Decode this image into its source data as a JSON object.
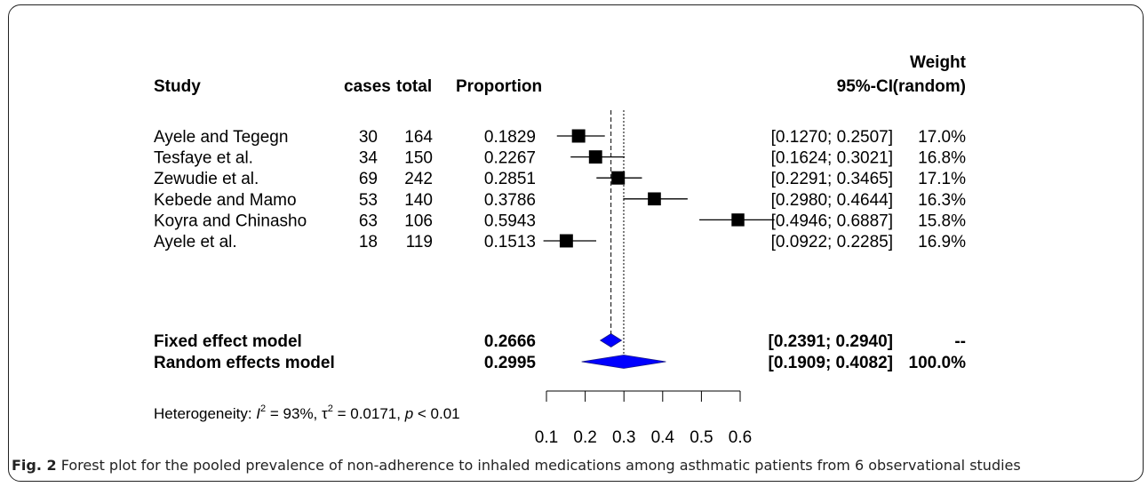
{
  "chart_data": {
    "type": "forest",
    "headers": {
      "study": "Study",
      "cases": "cases",
      "total": "total",
      "proportion": "Proportion",
      "ci": "95%-CI",
      "weight_line1": "Weight",
      "weight_line2": "(random)"
    },
    "studies": [
      {
        "name": "Ayele and Tegegn",
        "cases": "30",
        "total": "164",
        "proportion": "0.1829",
        "ci_text": "[0.1270; 0.2507]",
        "weight": "17.0%",
        "est": 0.1829,
        "lo": 0.127,
        "hi": 0.2507,
        "w": 17.0
      },
      {
        "name": "Tesfaye et al.",
        "cases": "34",
        "total": "150",
        "proportion": "0.2267",
        "ci_text": "[0.1624; 0.3021]",
        "weight": "16.8%",
        "est": 0.2267,
        "lo": 0.1624,
        "hi": 0.3021,
        "w": 16.8
      },
      {
        "name": "Zewudie et al.",
        "cases": "69",
        "total": "242",
        "proportion": "0.2851",
        "ci_text": "[0.2291; 0.3465]",
        "weight": "17.1%",
        "est": 0.2851,
        "lo": 0.2291,
        "hi": 0.3465,
        "w": 17.1
      },
      {
        "name": "Kebede and Mamo",
        "cases": "53",
        "total": "140",
        "proportion": "0.3786",
        "ci_text": "[0.2980; 0.4644]",
        "weight": "16.3%",
        "est": 0.3786,
        "lo": 0.298,
        "hi": 0.4644,
        "w": 16.3
      },
      {
        "name": "Koyra and Chinasho",
        "cases": "63",
        "total": "106",
        "proportion": "0.5943",
        "ci_text": "[0.4946; 0.6887]",
        "weight": "15.8%",
        "est": 0.5943,
        "lo": 0.4946,
        "hi": 0.6887,
        "w": 15.8
      },
      {
        "name": "Ayele et al.",
        "cases": "18",
        "total": "119",
        "proportion": "0.1513",
        "ci_text": "[0.0922; 0.2285]",
        "weight": "16.9%",
        "est": 0.1513,
        "lo": 0.0922,
        "hi": 0.2285,
        "w": 16.9
      }
    ],
    "summary": [
      {
        "name": "Fixed effect model",
        "proportion": "0.2666",
        "ci_text": "[0.2391; 0.2940]",
        "weight": "--",
        "est": 0.2666,
        "lo": 0.2391,
        "hi": 0.294
      },
      {
        "name": "Random effects model",
        "proportion": "0.2995",
        "ci_text": "[0.1909; 0.4082]",
        "weight": "100.0%",
        "est": 0.2995,
        "lo": 0.1909,
        "hi": 0.4082
      }
    ],
    "heterogeneity": {
      "prefix": "Heterogeneity: ",
      "i2_symbol": "I",
      "i2_sup": "2",
      "i2_value": " = 93%, ",
      "tau_symbol": "τ",
      "tau_sup": "2",
      "tau_value": " = 0.0171, ",
      "p_symbol": "p",
      "p_value": " < 0.01"
    },
    "x_ticks": [
      0.1,
      0.2,
      0.3,
      0.4,
      0.5,
      0.6
    ],
    "x_tick_labels": [
      "0.1",
      "0.2",
      "0.3",
      "0.4",
      "0.5",
      "0.6"
    ],
    "xlim": [
      0.1,
      0.6
    ],
    "colors": {
      "square": "#000000",
      "diamond": "#0000ff",
      "lines": "#000000"
    }
  },
  "caption": {
    "label": "Fig. 2",
    "text": " Forest plot for the pooled prevalence of non-adherence to inhaled medications among asthmatic patients from 6 observational studies"
  }
}
